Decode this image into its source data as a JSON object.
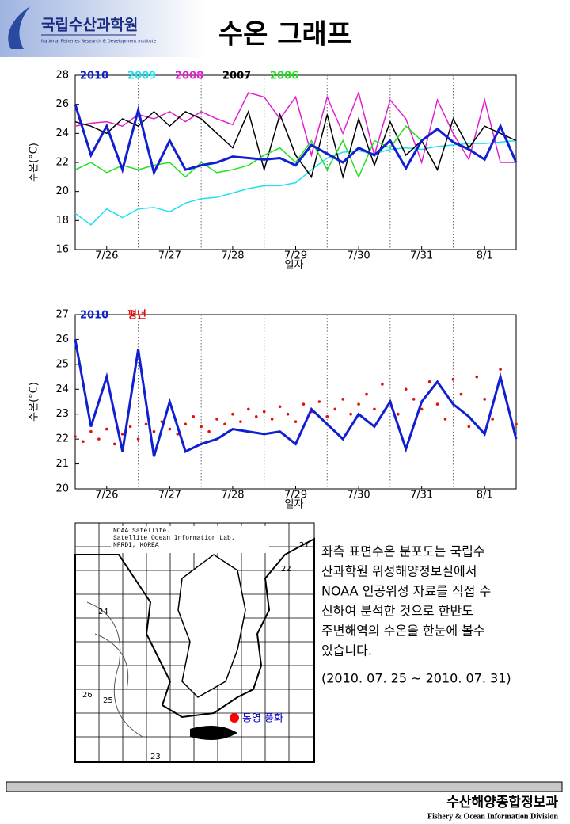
{
  "header": {
    "org": "국립수산과학원",
    "org_en": "National Fisheries Research & Development Institute",
    "title": "수온 그래프"
  },
  "chart_data": [
    {
      "type": "line",
      "ylabel": "수온(°C)",
      "xlabel": "일자",
      "ylim": [
        16,
        28
      ],
      "yticks": [
        16,
        18,
        20,
        22,
        24,
        26,
        28
      ],
      "xlim": [
        0,
        7
      ],
      "xticks": [
        {
          "value": 0.5,
          "label": "7/26"
        },
        {
          "value": 1.5,
          "label": "7/27"
        },
        {
          "value": 2.5,
          "label": "7/28"
        },
        {
          "value": 3.5,
          "label": "7/29"
        },
        {
          "value": 4.5,
          "label": "7/30"
        },
        {
          "value": 5.5,
          "label": "7/31"
        },
        {
          "value": 6.5,
          "label": "8/1"
        }
      ],
      "x": [
        0,
        0.25,
        0.5,
        0.75,
        1,
        1.25,
        1.5,
        1.75,
        2,
        2.25,
        2.5,
        2.75,
        3,
        3.25,
        3.5,
        3.75,
        4,
        4.25,
        4.5,
        4.75,
        5,
        5.25,
        5.5,
        5.75,
        6,
        6.25,
        6.5,
        6.75,
        7
      ],
      "series": [
        {
          "name": "2010",
          "color": "#1020d0",
          "values": [
            26.0,
            22.5,
            24.5,
            21.5,
            25.6,
            21.3,
            23.5,
            21.5,
            21.8,
            22.0,
            22.4,
            22.3,
            22.2,
            22.3,
            21.8,
            23.2,
            22.6,
            22.0,
            23.0,
            22.5,
            23.5,
            21.6,
            23.5,
            24.3,
            23.4,
            22.9,
            22.2,
            24.5,
            22.0
          ]
        },
        {
          "name": "2009",
          "color": "#20e0f0",
          "values": [
            18.5,
            17.7,
            18.8,
            18.2,
            18.8,
            18.9,
            18.6,
            19.2,
            19.5,
            19.6,
            19.9,
            20.2,
            20.4,
            20.4,
            20.6,
            21.5,
            22.3,
            22.7,
            22.8,
            22.6,
            22.9,
            23.0,
            22.9,
            23.1,
            23.2,
            23.3,
            23.3,
            23.4,
            23.5
          ]
        },
        {
          "name": "2008",
          "color": "#e020d0",
          "values": [
            24.5,
            24.7,
            24.8,
            24.5,
            25.3,
            25.0,
            25.5,
            24.8,
            25.5,
            25.0,
            24.6,
            26.8,
            26.5,
            25.0,
            26.5,
            22.5,
            26.5,
            24.0,
            26.8,
            22.5,
            26.3,
            25.0,
            22.0,
            26.3,
            24.0,
            22.2,
            26.3,
            22.0,
            22.0
          ]
        },
        {
          "name": "2007",
          "color": "#000000",
          "values": [
            24.8,
            24.5,
            24.0,
            25.0,
            24.5,
            25.5,
            24.5,
            25.5,
            25.0,
            24.0,
            23.0,
            25.5,
            21.5,
            25.3,
            22.5,
            21.0,
            25.3,
            21.0,
            25.0,
            21.8,
            24.8,
            22.5,
            23.5,
            21.5,
            25.0,
            23.0,
            24.5,
            24.0,
            23.5
          ]
        },
        {
          "name": "2006",
          "color": "#20e020",
          "values": [
            21.5,
            22.0,
            21.3,
            21.8,
            21.5,
            21.8,
            22.0,
            21.0,
            22.0,
            21.3,
            21.5,
            21.8,
            22.5,
            23.0,
            22.0,
            23.5,
            21.5,
            23.5,
            21.0,
            23.5,
            23.0,
            24.5,
            23.5,
            null,
            null,
            null,
            null,
            null,
            null
          ]
        }
      ]
    },
    {
      "type": "line",
      "ylabel": "수온(°C)",
      "xlabel": "일자",
      "ylim": [
        20,
        27
      ],
      "yticks": [
        20,
        21,
        22,
        23,
        24,
        25,
        26,
        27
      ],
      "xlim": [
        0,
        7
      ],
      "xticks": [
        {
          "value": 0.5,
          "label": "7/26"
        },
        {
          "value": 1.5,
          "label": "7/27"
        },
        {
          "value": 2.5,
          "label": "7/28"
        },
        {
          "value": 3.5,
          "label": "7/29"
        },
        {
          "value": 4.5,
          "label": "7/30"
        },
        {
          "value": 5.5,
          "label": "7/31"
        },
        {
          "value": 6.5,
          "label": "8/1"
        }
      ],
      "x": [
        0,
        0.25,
        0.5,
        0.75,
        1,
        1.25,
        1.5,
        1.75,
        2,
        2.25,
        2.5,
        2.75,
        3,
        3.25,
        3.5,
        3.75,
        4,
        4.25,
        4.5,
        4.75,
        5,
        5.25,
        5.5,
        5.75,
        6,
        6.25,
        6.5,
        6.75,
        7
      ],
      "series": [
        {
          "name": "2010",
          "color": "#1020d0",
          "values": [
            26.0,
            22.5,
            24.5,
            21.5,
            25.6,
            21.3,
            23.5,
            21.5,
            21.8,
            22.0,
            22.4,
            22.3,
            22.2,
            22.3,
            21.8,
            23.2,
            22.6,
            22.0,
            23.0,
            22.5,
            23.5,
            21.6,
            23.5,
            24.3,
            23.4,
            22.9,
            22.2,
            24.5,
            22.0
          ]
        },
        {
          "name": "평년",
          "color": "#e01010",
          "style": "dots",
          "x": [
            0,
            0.125,
            0.25,
            0.375,
            0.5,
            0.625,
            0.75,
            0.875,
            1,
            1.125,
            1.25,
            1.375,
            1.5,
            1.625,
            1.75,
            1.875,
            2,
            2.125,
            2.25,
            2.375,
            2.5,
            2.625,
            2.75,
            2.875,
            3,
            3.125,
            3.25,
            3.375,
            3.5,
            3.625,
            3.75,
            3.875,
            4,
            4.125,
            4.25,
            4.375,
            4.5,
            4.625,
            4.75,
            4.875,
            5,
            5.125,
            5.25,
            5.375,
            5.5,
            5.625,
            5.75,
            5.875,
            6,
            6.125,
            6.25,
            6.375,
            6.5,
            6.625,
            6.75,
            6.875,
            7
          ],
          "values": [
            22.1,
            21.9,
            22.3,
            22.0,
            22.4,
            21.8,
            22.2,
            22.5,
            22.0,
            22.6,
            22.3,
            22.7,
            22.4,
            22.2,
            22.6,
            22.9,
            22.5,
            22.3,
            22.8,
            22.6,
            23.0,
            22.7,
            23.2,
            22.9,
            23.1,
            22.8,
            23.3,
            23.0,
            22.7,
            23.4,
            23.1,
            23.5,
            22.9,
            23.2,
            23.6,
            23.0,
            23.4,
            23.8,
            23.2,
            24.2,
            23.5,
            23.0,
            24.0,
            23.6,
            23.2,
            24.3,
            23.4,
            22.8,
            24.4,
            23.8,
            22.5,
            24.5,
            23.6,
            22.8,
            24.8,
            23.2,
            22.6
          ]
        }
      ]
    }
  ],
  "map": {
    "caption": [
      "NOAA Satellite.",
      "Satellite Ocean Information Lab.",
      "NFRDI, KOREA"
    ],
    "station": "통영 풍화",
    "contours": [
      "21",
      "22",
      "24",
      "25",
      "26",
      "23"
    ]
  },
  "description": {
    "lines": [
      "좌측 표면수온 분포도는 국립수",
      "산과학원 위성해양정보실에서",
      "NOAA 인공위성 자료를 직접 수",
      "신하여 분석한 것으로  한반도",
      "주변해역의 수온을 한눈에 볼수",
      "있습니다."
    ],
    "period": "(2010. 07. 25 ~ 2010. 07. 31)"
  },
  "footer": {
    "division": "수산해양종합정보과",
    "division_en": "Fishery & Ocean Information Division"
  }
}
